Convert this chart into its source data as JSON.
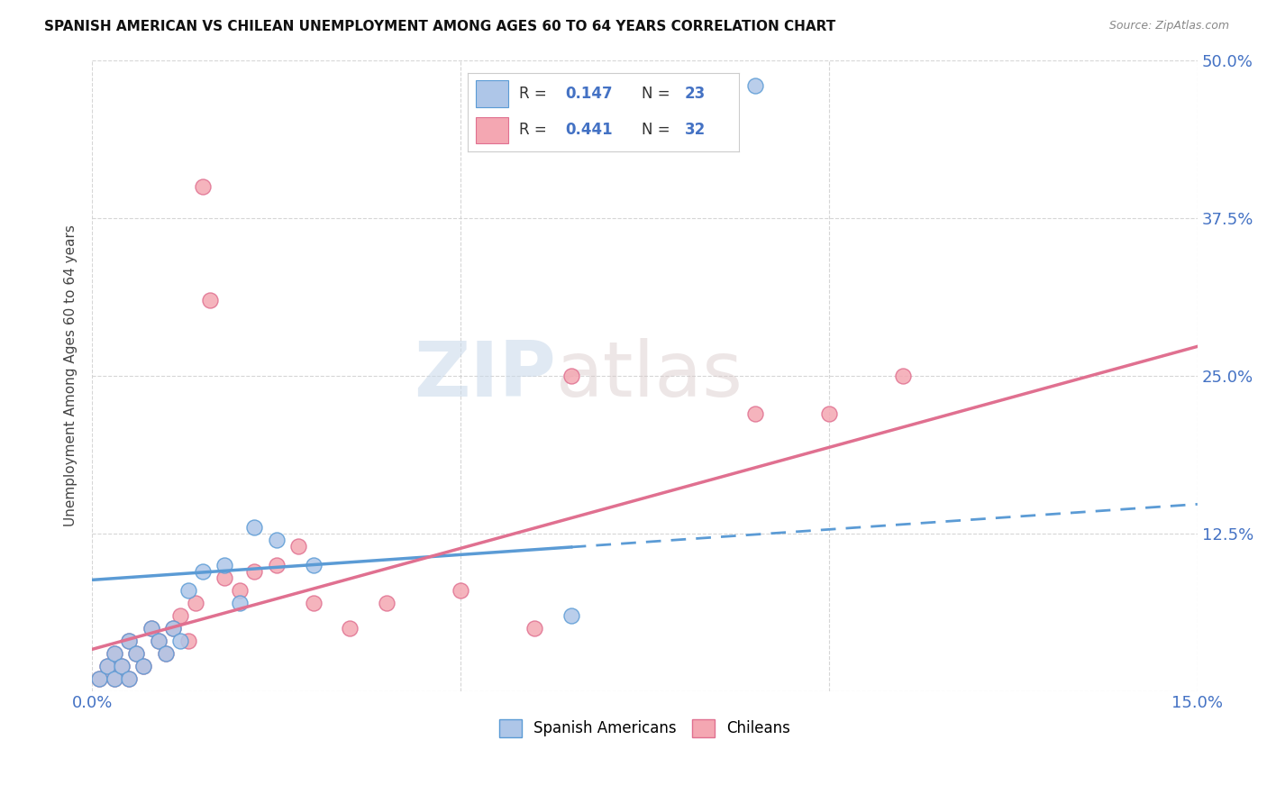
{
  "title": "SPANISH AMERICAN VS CHILEAN UNEMPLOYMENT AMONG AGES 60 TO 64 YEARS CORRELATION CHART",
  "source": "Source: ZipAtlas.com",
  "ylabel": "Unemployment Among Ages 60 to 64 years",
  "xlim": [
    0,
    0.15
  ],
  "ylim": [
    0,
    0.5
  ],
  "xtick_positions": [
    0.0,
    0.05,
    0.1,
    0.15
  ],
  "xticklabels": [
    "0.0%",
    "",
    "",
    "15.0%"
  ],
  "ytick_positions": [
    0.0,
    0.125,
    0.25,
    0.375,
    0.5
  ],
  "yticklabels_right": [
    "",
    "12.5%",
    "25.0%",
    "37.5%",
    "50.0%"
  ],
  "color_spanish": "#aec6e8",
  "color_chilean": "#f4a7b2",
  "color_line_spanish": "#5b9bd5",
  "color_line_chilean": "#e07090",
  "color_text_blue": "#4472c4",
  "watermark_zip": "ZIP",
  "watermark_atlas": "atlas",
  "spanish_x": [
    0.001,
    0.002,
    0.003,
    0.003,
    0.004,
    0.005,
    0.005,
    0.006,
    0.007,
    0.008,
    0.009,
    0.01,
    0.011,
    0.012,
    0.013,
    0.015,
    0.018,
    0.02,
    0.022,
    0.025,
    0.03,
    0.065,
    0.09
  ],
  "spanish_y": [
    0.01,
    0.02,
    0.01,
    0.03,
    0.02,
    0.01,
    0.04,
    0.03,
    0.02,
    0.05,
    0.04,
    0.03,
    0.05,
    0.04,
    0.08,
    0.095,
    0.1,
    0.07,
    0.13,
    0.12,
    0.1,
    0.06,
    0.48
  ],
  "chilean_x": [
    0.001,
    0.002,
    0.003,
    0.003,
    0.004,
    0.005,
    0.005,
    0.006,
    0.007,
    0.008,
    0.009,
    0.01,
    0.011,
    0.012,
    0.013,
    0.014,
    0.015,
    0.016,
    0.018,
    0.02,
    0.022,
    0.025,
    0.028,
    0.03,
    0.035,
    0.04,
    0.05,
    0.06,
    0.065,
    0.09,
    0.1,
    0.11
  ],
  "chilean_y": [
    0.01,
    0.02,
    0.01,
    0.03,
    0.02,
    0.01,
    0.04,
    0.03,
    0.02,
    0.05,
    0.04,
    0.03,
    0.05,
    0.06,
    0.04,
    0.07,
    0.4,
    0.31,
    0.09,
    0.08,
    0.095,
    0.1,
    0.115,
    0.07,
    0.05,
    0.07,
    0.08,
    0.05,
    0.25,
    0.22,
    0.22,
    0.25
  ],
  "trend_spanish_x0": 0.0,
  "trend_spanish_x1": 0.15,
  "trend_spanish_b": 0.088,
  "trend_spanish_m": 0.4,
  "trend_spanish_solid_end": 0.065,
  "trend_chilean_x0": 0.0,
  "trend_chilean_x1": 0.15,
  "trend_chilean_b": 0.033,
  "trend_chilean_m": 1.6
}
